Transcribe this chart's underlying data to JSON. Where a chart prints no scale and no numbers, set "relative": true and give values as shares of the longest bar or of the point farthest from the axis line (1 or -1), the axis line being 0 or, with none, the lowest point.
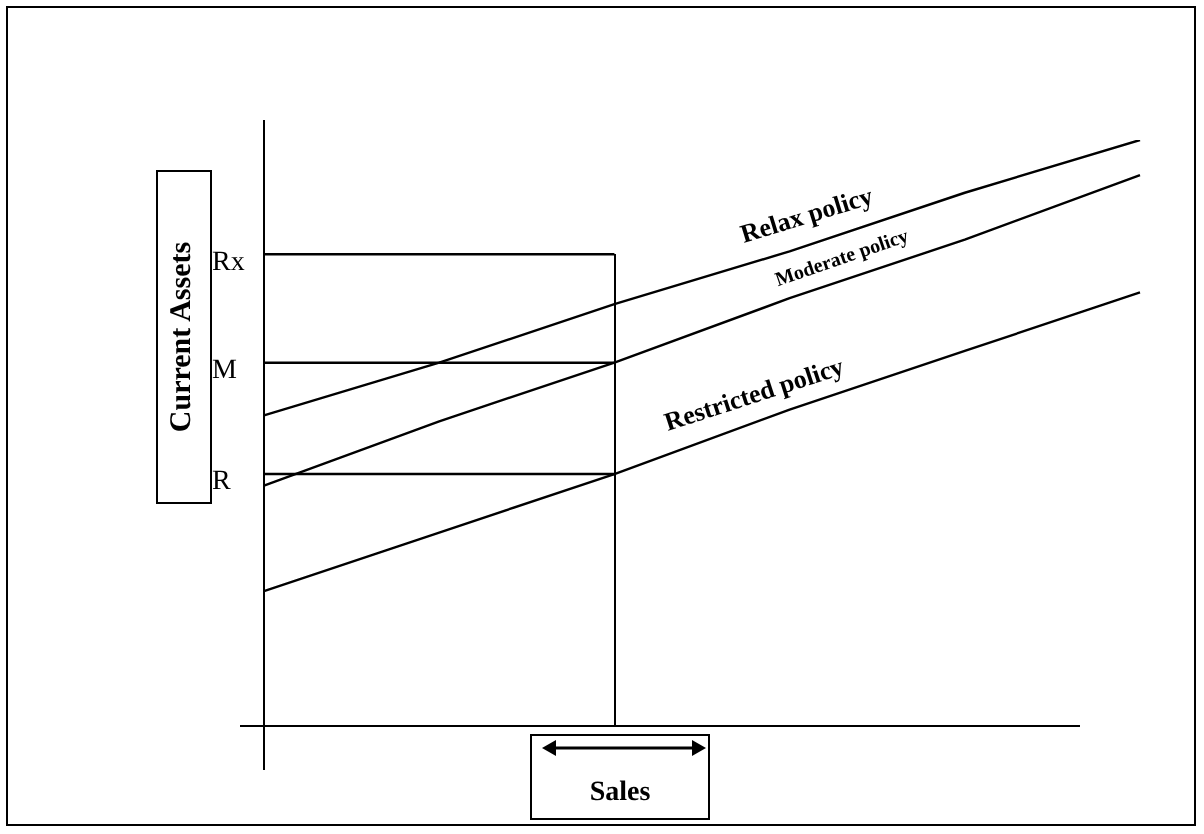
{
  "chart_data": {
    "type": "line",
    "relative": true,
    "categories": [
      null,
      null,
      null,
      null,
      null,
      null
    ],
    "tick_labels": false,
    "xlabel": "Sales",
    "ylabel": "Current Assets",
    "series": [
      {
        "name": "Relax policy",
        "color": "#000000",
        "values": [
          0.53,
          0.62,
          0.72,
          0.81,
          0.91,
          1.0
        ]
      },
      {
        "name": "Moderate policy",
        "color": "#000000",
        "values": [
          0.41,
          0.52,
          0.62,
          0.73,
          0.83,
          0.94
        ]
      },
      {
        "name": "Restricted policy",
        "color": "#000000",
        "values": [
          0.23,
          0.33,
          0.43,
          0.54,
          0.64,
          0.74
        ]
      },
      {
        "name": "Rx",
        "color": "#000000",
        "values": [
          0.805,
          0.805,
          0.805,
          null,
          null,
          null
        ]
      },
      {
        "name": "M",
        "color": "#000000",
        "values": [
          0.62,
          0.62,
          0.62,
          null,
          null,
          null
        ]
      },
      {
        "name": "R",
        "color": "#000000",
        "values": [
          0.43,
          0.43,
          0.43,
          null,
          null,
          null
        ]
      }
    ]
  }
}
